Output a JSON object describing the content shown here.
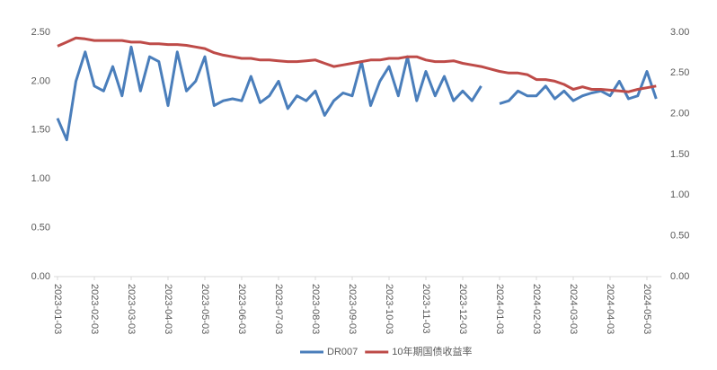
{
  "chart_data": {
    "type": "line",
    "categories": [
      "2023-01-03",
      null,
      null,
      null,
      "2023-02-03",
      null,
      null,
      null,
      "2023-03-03",
      null,
      null,
      null,
      "2023-04-03",
      null,
      null,
      null,
      "2023-05-03",
      null,
      null,
      null,
      "2023-06-03",
      null,
      null,
      null,
      "2023-07-03",
      null,
      null,
      null,
      "2023-08-03",
      null,
      null,
      null,
      "2023-09-03",
      null,
      null,
      null,
      "2023-10-03",
      null,
      null,
      null,
      "2023-11-03",
      null,
      null,
      null,
      "2023-12-03",
      null,
      null,
      null,
      "2024-01-03",
      null,
      null,
      null,
      "2024-02-03",
      null,
      null,
      null,
      "2024-03-03",
      null,
      null,
      null,
      "2024-04-03",
      null,
      null,
      null,
      "2024-05-03",
      null
    ],
    "series": [
      {
        "name": "DR007",
        "color": "#4a7ebb",
        "values": [
          1.62,
          1.4,
          2.0,
          2.3,
          1.95,
          1.9,
          2.15,
          1.85,
          2.35,
          1.9,
          2.25,
          2.2,
          1.75,
          2.3,
          1.9,
          2.0,
          2.25,
          1.75,
          1.8,
          1.82,
          1.8,
          2.05,
          1.78,
          1.85,
          2.0,
          1.72,
          1.85,
          1.8,
          1.9,
          1.65,
          1.8,
          1.88,
          1.85,
          2.2,
          1.75,
          2.0,
          2.15,
          1.85,
          2.25,
          1.8,
          2.1,
          1.85,
          2.05,
          1.8,
          1.9,
          1.8,
          1.95,
          null,
          1.77,
          1.8,
          1.9,
          1.85,
          1.85,
          1.95,
          1.82,
          1.9,
          1.8,
          1.85,
          1.88,
          1.9,
          1.85,
          2.0,
          1.82,
          1.85,
          2.1,
          1.82
        ]
      },
      {
        "name": "10年期国债收益率",
        "color": "#be4b48",
        "axis": "y2",
        "values": [
          2.83,
          2.88,
          2.93,
          2.92,
          2.9,
          2.9,
          2.9,
          2.9,
          2.88,
          2.88,
          2.86,
          2.86,
          2.85,
          2.85,
          2.84,
          2.82,
          2.8,
          2.75,
          2.72,
          2.7,
          2.68,
          2.68,
          2.66,
          2.66,
          2.65,
          2.64,
          2.64,
          2.65,
          2.66,
          2.62,
          2.58,
          2.6,
          2.62,
          2.64,
          2.66,
          2.66,
          2.68,
          2.68,
          2.7,
          2.7,
          2.66,
          2.64,
          2.64,
          2.65,
          2.62,
          2.6,
          2.58,
          2.55,
          2.52,
          2.5,
          2.5,
          2.48,
          2.42,
          2.42,
          2.4,
          2.36,
          2.3,
          2.33,
          2.3,
          2.3,
          2.29,
          2.28,
          2.27,
          2.3,
          2.32,
          2.34
        ]
      }
    ],
    "ylim": [
      0,
      2.5
    ],
    "yticks": [
      {
        "value": 0,
        "label": "0.00"
      },
      {
        "value": 0.5,
        "label": "0.50"
      },
      {
        "value": 1,
        "label": "1.00"
      },
      {
        "value": 1.5,
        "label": "1.50"
      },
      {
        "value": 2,
        "label": "2.00"
      },
      {
        "value": 2.5,
        "label": "2.50"
      }
    ],
    "y2lim": [
      0,
      3
    ],
    "y2ticks": [
      {
        "value": 0,
        "label": "0.00"
      },
      {
        "value": 0.5,
        "label": "0.50"
      },
      {
        "value": 1,
        "label": "1.00"
      },
      {
        "value": 1.5,
        "label": "1.50"
      },
      {
        "value": 2,
        "label": "2.00"
      },
      {
        "value": 2.5,
        "label": "2.50"
      },
      {
        "value": 3,
        "label": "3.00"
      }
    ],
    "legend": "bottom"
  }
}
